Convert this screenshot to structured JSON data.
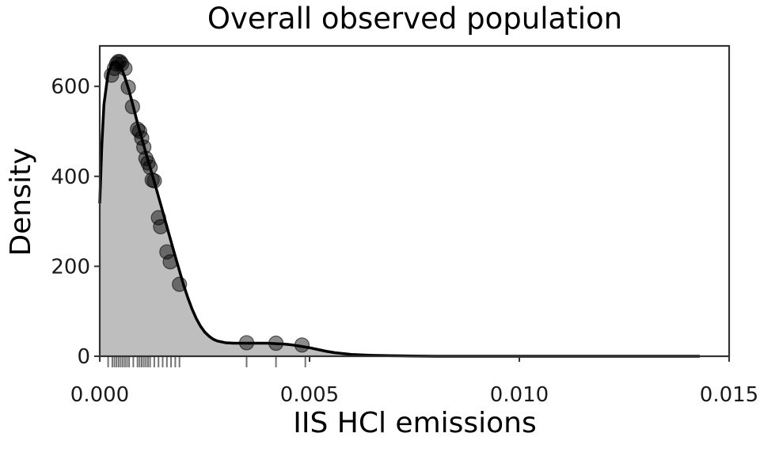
{
  "chart_data": {
    "type": "area",
    "title": "Overall observed population",
    "xlabel": "IIS HCl emissions",
    "ylabel": "Density",
    "xlim": [
      0.0,
      0.015
    ],
    "ylim": [
      0,
      690
    ],
    "x_ticks": [
      0.0,
      0.005,
      0.01,
      0.015
    ],
    "x_tick_labels": [
      "0.000",
      "0.005",
      "0.010",
      "0.015"
    ],
    "y_ticks": [
      0,
      200,
      400,
      600
    ],
    "y_tick_labels": [
      "0",
      "200",
      "400",
      "600"
    ],
    "grid": false,
    "legend": "none",
    "colors": {
      "fill": "#bebebe",
      "curve": "#000000",
      "points": "#000000",
      "frame": "#333333"
    },
    "density_curve": {
      "x": [
        0.0,
        5e-05,
        0.0001,
        0.0002,
        0.0003,
        0.0004,
        0.0005,
        0.0006,
        0.0007,
        0.0008,
        0.0009,
        0.001,
        0.0011,
        0.0012,
        0.0013,
        0.0014,
        0.0015,
        0.0016,
        0.0017,
        0.0018,
        0.0019,
        0.002,
        0.0021,
        0.0022,
        0.0023,
        0.0024,
        0.0025,
        0.0026,
        0.0027,
        0.0028,
        0.003,
        0.0032,
        0.0034,
        0.0036,
        0.0038,
        0.004,
        0.0042,
        0.0044,
        0.0046,
        0.0048,
        0.005,
        0.0052,
        0.0054,
        0.0056,
        0.0058,
        0.006,
        0.0065,
        0.007,
        0.0075,
        0.008,
        0.009,
        0.01,
        0.011,
        0.012,
        0.013,
        0.0143
      ],
      "y": [
        340,
        470,
        560,
        630,
        652,
        655,
        645,
        620,
        590,
        555,
        518,
        485,
        452,
        420,
        388,
        355,
        322,
        288,
        255,
        222,
        190,
        158,
        130,
        105,
        84,
        67,
        54,
        45,
        38,
        34,
        30,
        29,
        29,
        29,
        29,
        29,
        28,
        27,
        25,
        22,
        19,
        15,
        11,
        8,
        6,
        4,
        2,
        1,
        0.5,
        0,
        0,
        0,
        0,
        0,
        0,
        0
      ]
    },
    "points": {
      "x": [
        0.00028,
        0.00035,
        0.0004,
        0.00044,
        0.00048,
        0.00052,
        0.0006,
        0.00068,
        0.00078,
        0.0009,
        0.00095,
        0.001,
        0.00105,
        0.0011,
        0.00115,
        0.0012,
        0.00125,
        0.0013,
        0.0014,
        0.00145,
        0.0016,
        0.00168,
        0.0019,
        0.0035,
        0.0042,
        0.00482
      ],
      "y": [
        625,
        640,
        650,
        655,
        655,
        650,
        640,
        598,
        555,
        505,
        500,
        485,
        465,
        440,
        430,
        420,
        392,
        390,
        308,
        288,
        232,
        210,
        160,
        30,
        29,
        25
      ]
    },
    "rug": [
      0.0002,
      0.0003,
      0.00035,
      0.0004,
      0.00045,
      0.0005,
      0.00055,
      0.0006,
      0.00065,
      0.0007,
      0.0008,
      0.0009,
      0.00095,
      0.001,
      0.00105,
      0.0011,
      0.00115,
      0.0012,
      0.0013,
      0.0014,
      0.0015,
      0.0016,
      0.0017,
      0.0018,
      0.0019,
      0.0035,
      0.0042,
      0.0049
    ]
  }
}
